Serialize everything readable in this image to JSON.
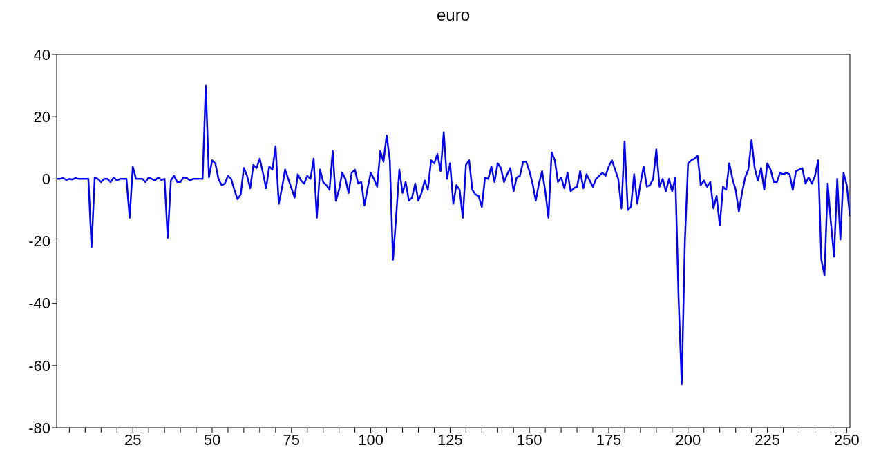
{
  "chart_data": {
    "type": "line",
    "title": "euro",
    "xlim": [
      1,
      251
    ],
    "ylim": [
      -80,
      40
    ],
    "yticks": [
      -80,
      -60,
      -40,
      -20,
      0,
      20,
      40
    ],
    "xticks": [
      {
        "value": 5,
        "label": null
      },
      {
        "value": 10,
        "label": null
      },
      {
        "value": 15,
        "label": null
      },
      {
        "value": 20,
        "label": null
      },
      25,
      {
        "value": 30,
        "label": null
      },
      {
        "value": 35,
        "label": null
      },
      {
        "value": 40,
        "label": null
      },
      {
        "value": 45,
        "label": null
      },
      50,
      {
        "value": 55,
        "label": null
      },
      {
        "value": 60,
        "label": null
      },
      {
        "value": 65,
        "label": null
      },
      {
        "value": 70,
        "label": null
      },
      75,
      {
        "value": 80,
        "label": null
      },
      {
        "value": 85,
        "label": null
      },
      {
        "value": 90,
        "label": null
      },
      {
        "value": 95,
        "label": null
      },
      100,
      {
        "value": 105,
        "label": null
      },
      {
        "value": 110,
        "label": null
      },
      {
        "value": 115,
        "label": null
      },
      {
        "value": 120,
        "label": null
      },
      125,
      {
        "value": 130,
        "label": null
      },
      {
        "value": 135,
        "label": null
      },
      {
        "value": 140,
        "label": null
      },
      {
        "value": 145,
        "label": null
      },
      150,
      {
        "value": 155,
        "label": null
      },
      {
        "value": 160,
        "label": null
      },
      {
        "value": 165,
        "label": null
      },
      {
        "value": 170,
        "label": null
      },
      175,
      {
        "value": 180,
        "label": null
      },
      {
        "value": 185,
        "label": null
      },
      {
        "value": 190,
        "label": null
      },
      {
        "value": 195,
        "label": null
      },
      200,
      {
        "value": 205,
        "label": null
      },
      {
        "value": 210,
        "label": null
      },
      {
        "value": 215,
        "label": null
      },
      {
        "value": 220,
        "label": null
      },
      225,
      {
        "value": 230,
        "label": null
      },
      {
        "value": 235,
        "label": null
      },
      {
        "value": 240,
        "label": null
      },
      {
        "value": 245,
        "label": null
      },
      250
    ],
    "grid": false,
    "legend": false,
    "marker": "none",
    "line_style": "solid",
    "x": [
      1,
      2,
      3,
      4,
      5,
      6,
      7,
      8,
      9,
      10,
      11,
      12,
      13,
      14,
      15,
      16,
      17,
      18,
      19,
      20,
      21,
      22,
      23,
      24,
      25,
      26,
      27,
      28,
      29,
      30,
      31,
      32,
      33,
      34,
      35,
      36,
      37,
      38,
      39,
      40,
      41,
      42,
      43,
      44,
      45,
      46,
      47,
      48,
      49,
      50,
      51,
      52,
      53,
      54,
      55,
      56,
      57,
      58,
      59,
      60,
      61,
      62,
      63,
      64,
      65,
      66,
      67,
      68,
      69,
      70,
      71,
      72,
      73,
      74,
      75,
      76,
      77,
      78,
      79,
      80,
      81,
      82,
      83,
      84,
      85,
      86,
      87,
      88,
      89,
      90,
      91,
      92,
      93,
      94,
      95,
      96,
      97,
      98,
      99,
      100,
      101,
      102,
      103,
      104,
      105,
      106,
      107,
      108,
      109,
      110,
      111,
      112,
      113,
      114,
      115,
      116,
      117,
      118,
      119,
      120,
      121,
      122,
      123,
      124,
      125,
      126,
      127,
      128,
      129,
      130,
      131,
      132,
      133,
      134,
      135,
      136,
      137,
      138,
      139,
      140,
      141,
      142,
      143,
      144,
      145,
      146,
      147,
      148,
      149,
      150,
      151,
      152,
      153,
      154,
      155,
      156,
      157,
      158,
      159,
      160,
      161,
      162,
      163,
      164,
      165,
      166,
      167,
      168,
      169,
      170,
      171,
      172,
      173,
      174,
      175,
      176,
      177,
      178,
      179,
      180,
      181,
      182,
      183,
      184,
      185,
      186,
      187,
      188,
      189,
      190,
      191,
      192,
      193,
      194,
      195,
      196,
      197,
      198,
      199,
      200,
      201,
      202,
      203,
      204,
      205,
      206,
      207,
      208,
      209,
      210,
      211,
      212,
      213,
      214,
      215,
      216,
      217,
      218,
      219,
      220,
      221,
      222,
      223,
      224,
      225,
      226,
      227,
      228,
      229,
      230,
      231,
      232,
      233,
      234,
      235,
      236,
      237,
      238,
      239,
      240,
      241,
      242,
      243,
      244,
      245,
      246,
      247,
      248,
      249,
      250,
      251
    ],
    "series": [
      {
        "color": "#0000ff",
        "values": [
          0,
          0,
          0.3,
          -0.3,
          0,
          -0.2,
          0.3,
          0,
          0,
          0,
          0,
          -22,
          0.5,
          0,
          -1,
          0,
          0,
          -1,
          0.5,
          -0.5,
          0,
          0,
          0,
          -12.5,
          4,
          0,
          0,
          0,
          -1,
          0.5,
          0,
          -0.5,
          0.5,
          -0.3,
          0,
          -19,
          -0.5,
          1,
          -1,
          -1,
          0.5,
          0.3,
          -0.5,
          0,
          0,
          0,
          0,
          30,
          0.5,
          6,
          5,
          0,
          -2,
          -1.5,
          1,
          0,
          -3.5,
          -6.5,
          -5,
          3.5,
          1,
          -3,
          4.5,
          3.5,
          6.5,
          2,
          -3,
          4,
          3,
          10.5,
          -8,
          -3,
          3,
          0,
          -3,
          -6,
          1.5,
          -0.5,
          -1.5,
          1,
          0,
          6.5,
          -12.5,
          3,
          -1,
          -2,
          -3.5,
          9,
          -7,
          -3.5,
          2,
          0,
          -4.5,
          2,
          3,
          -1.5,
          -1,
          -8.5,
          -3,
          2,
          0,
          -2.5,
          9,
          5.5,
          14,
          6,
          -26,
          -12,
          3,
          -4.5,
          -1,
          -7,
          -6,
          -1.5,
          -7,
          -4.5,
          -0.5,
          -3.5,
          6,
          5,
          8,
          2.5,
          15,
          0,
          5,
          -8,
          -2,
          -3.5,
          -12.5,
          4.5,
          6,
          -3.5,
          -5,
          -5.5,
          -9,
          0.5,
          0,
          4,
          -1,
          5,
          3.5,
          -1,
          1.5,
          3.5,
          -4,
          0.5,
          1,
          5.5,
          5.5,
          2.5,
          -1.5,
          -7,
          -1.5,
          2.5,
          -4,
          -12.5,
          8.5,
          6,
          -1,
          0.5,
          -3,
          2,
          -4,
          -3,
          -2.5,
          2.5,
          -3,
          1.5,
          -0.5,
          -2.5,
          0,
          1,
          2,
          1,
          4,
          6,
          3,
          0,
          -9.5,
          12,
          -10,
          -9,
          1.5,
          -8,
          -1.5,
          4,
          -2.5,
          -2,
          0,
          9.5,
          -2.5,
          0,
          -4,
          0,
          -4,
          0.5,
          -38,
          -66,
          -20,
          5,
          6,
          6.5,
          7.5,
          -2,
          -0.5,
          -2.5,
          -1,
          -9.5,
          -5.5,
          -15,
          -2.5,
          -3.5,
          5,
          0,
          -3.5,
          -10.5,
          -4.5,
          0.5,
          3,
          12.5,
          3.5,
          -0.5,
          3.5,
          -3.5,
          5,
          3,
          -1,
          -1,
          2,
          1.5,
          2,
          1.5,
          -3.5,
          2.5,
          3,
          3.5,
          -1.5,
          0.5,
          -1.5,
          1,
          6,
          -26,
          -31,
          -1.5,
          -14,
          -25,
          0,
          -19.5,
          2,
          -2,
          -12
        ]
      }
    ]
  }
}
